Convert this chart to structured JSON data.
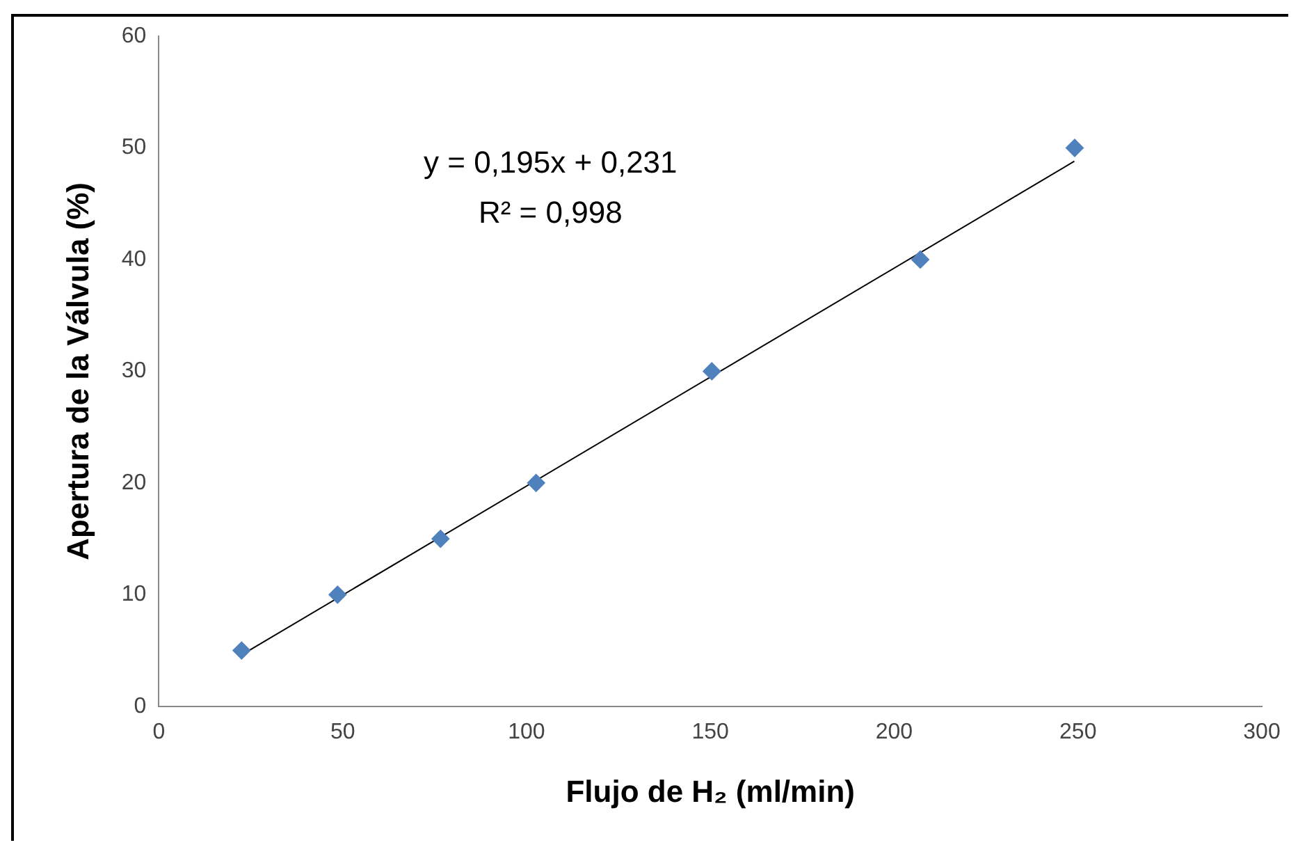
{
  "chart_data": {
    "type": "scatter",
    "xlabel": "Flujo de H₂ (ml/min)",
    "ylabel": "Apertura de la Válvula (%)",
    "xlim": [
      0,
      300
    ],
    "xticks": [
      0,
      50,
      100,
      150,
      200,
      250,
      300
    ],
    "ylim": [
      0,
      60
    ],
    "yticks": [
      0,
      10,
      20,
      30,
      40,
      50,
      60
    ],
    "grid": false,
    "legend": false,
    "marker": "diamond",
    "annotations": [
      "y = 0,195x + 0,231",
      "R² = 0,998"
    ],
    "series": [
      {
        "type": "scatter",
        "color": "#4f81bd",
        "x": [
          22.5,
          48.6,
          76.6,
          102.6,
          150.4,
          207.1,
          249.1
        ],
        "values": [
          5,
          10,
          15,
          20,
          30,
          40,
          50
        ]
      },
      {
        "type": "line",
        "color": "#000000",
        "marker": "none",
        "line_style": "solid",
        "x": [
          22.5,
          249
        ],
        "values": [
          4.6,
          48.8
        ]
      }
    ]
  }
}
